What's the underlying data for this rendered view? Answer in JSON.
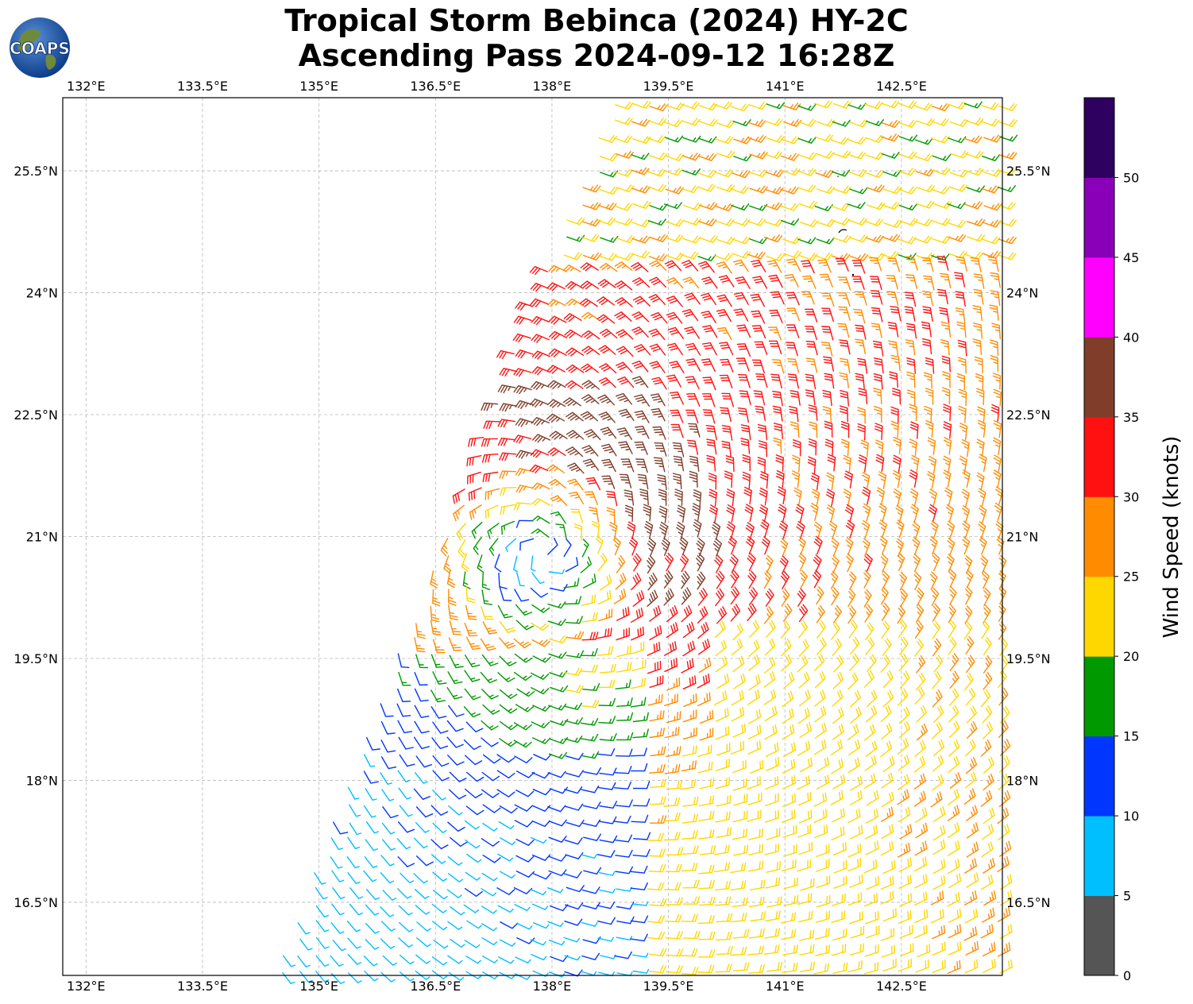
{
  "title": {
    "line1": "Tropical Storm Bebinca (2024) HY-2C",
    "line2": "Ascending Pass 2024-09-12 16:28Z"
  },
  "logo": {
    "text": "COAPS"
  },
  "map": {
    "lon_range": [
      131.7,
      143.8
    ],
    "lat_range": [
      15.6,
      26.4
    ],
    "lon_ticks": [
      "132°E",
      "133.5°E",
      "135°E",
      "136.5°E",
      "138°E",
      "139.5°E",
      "141°E",
      "142.5°E"
    ],
    "lat_ticks": [
      "16.5°N",
      "18°N",
      "19.5°N",
      "21°N",
      "22.5°N",
      "24°N",
      "25.5°N"
    ],
    "storm_center": {
      "lon": 137.9,
      "lat": 20.8
    },
    "swath_note": "wind barbs"
  },
  "colorbar": {
    "label": "Wind Speed (knots)",
    "tick_labels": [
      "0",
      "5",
      "10",
      "15",
      "20",
      "25",
      "30",
      "35",
      "40",
      "45",
      "50"
    ],
    "colors": [
      "#555555",
      "#00bfff",
      "#0036ff",
      "#009900",
      "#ffd700",
      "#ff8c00",
      "#ff1111",
      "#803e2a",
      "#ff00ff",
      "#8a00b8",
      "#2e0060"
    ]
  }
}
